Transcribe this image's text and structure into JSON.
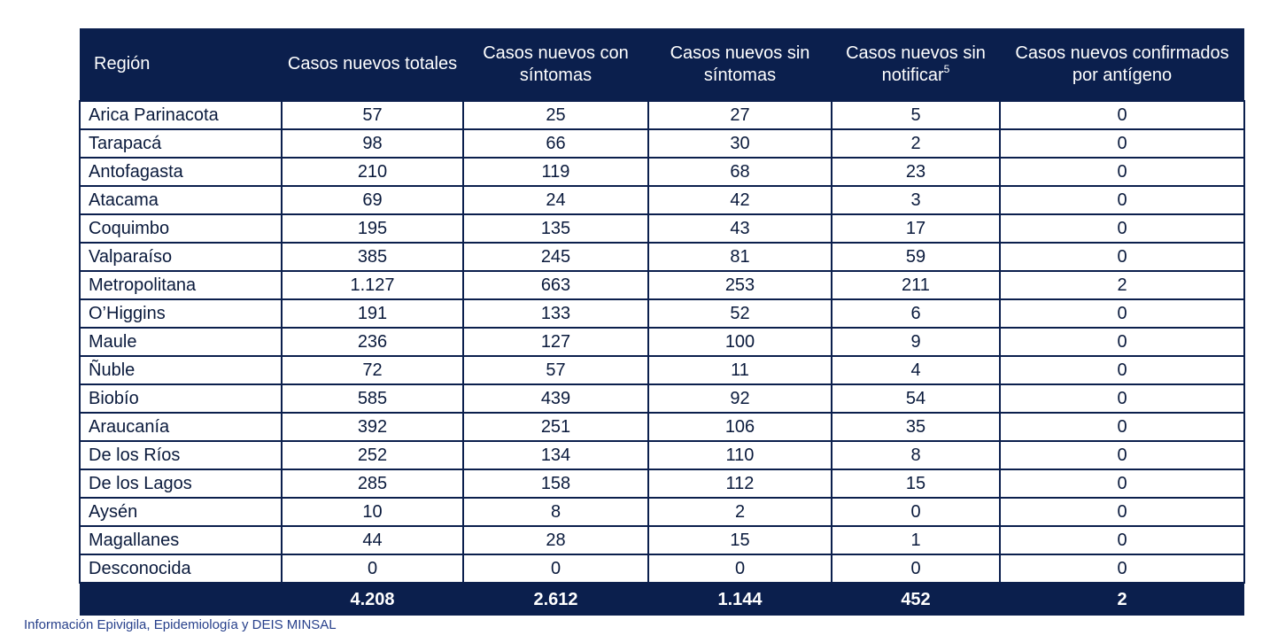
{
  "table": {
    "headers": [
      "Región",
      "Casos nuevos totales",
      "Casos nuevos con síntomas",
      "Casos nuevos sin síntomas",
      "Casos nuevos sin notificar",
      "Casos nuevos confirmados por antígeno"
    ],
    "header_superscript": "5",
    "rows": [
      [
        "Arica Parinacota",
        "57",
        "25",
        "27",
        "5",
        "0"
      ],
      [
        "Tarapacá",
        "98",
        "66",
        "30",
        "2",
        "0"
      ],
      [
        "Antofagasta",
        "210",
        "119",
        "68",
        "23",
        "0"
      ],
      [
        "Atacama",
        "69",
        "24",
        "42",
        "3",
        "0"
      ],
      [
        "Coquimbo",
        "195",
        "135",
        "43",
        "17",
        "0"
      ],
      [
        "Valparaíso",
        "385",
        "245",
        "81",
        "59",
        "0"
      ],
      [
        "Metropolitana",
        "1.127",
        "663",
        "253",
        "211",
        "2"
      ],
      [
        "O’Higgins",
        "191",
        "133",
        "52",
        "6",
        "0"
      ],
      [
        "Maule",
        "236",
        "127",
        "100",
        "9",
        "0"
      ],
      [
        "Ñuble",
        "72",
        "57",
        "11",
        "4",
        "0"
      ],
      [
        "Biobío",
        "585",
        "439",
        "92",
        "54",
        "0"
      ],
      [
        "Araucanía",
        "392",
        "251",
        "106",
        "35",
        "0"
      ],
      [
        "De los Ríos",
        "252",
        "134",
        "110",
        "8",
        "0"
      ],
      [
        "De los Lagos",
        "285",
        "158",
        "112",
        "15",
        "0"
      ],
      [
        "Aysén",
        "10",
        "8",
        "2",
        "0",
        "0"
      ],
      [
        "Magallanes",
        "44",
        "28",
        "15",
        "1",
        "0"
      ],
      [
        "Desconocida",
        "0",
        "0",
        "0",
        "0",
        "0"
      ]
    ],
    "totals": [
      "",
      "4.208",
      "2.612",
      "1.144",
      "452",
      "2"
    ]
  },
  "source_note": "Información Epivigila, Epidemiología y DEIS MINSAL",
  "colors": {
    "header_bg": "#0b1f4d",
    "header_text": "#ffffff",
    "cell_text": "#0a1a3c",
    "note_text": "#27408b"
  }
}
